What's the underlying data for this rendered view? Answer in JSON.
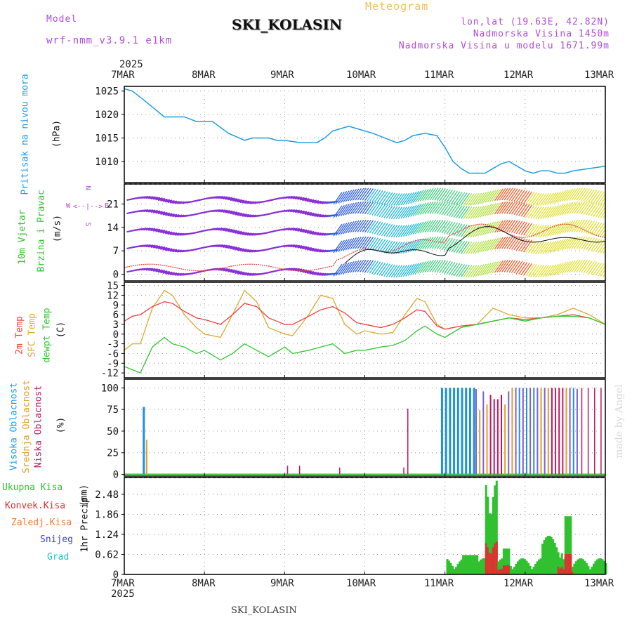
{
  "header": {
    "model_label": "Model",
    "model_name": "wrf-nmm_v3.9.1 e1km",
    "station": "SKI_KOLASIN",
    "product": "Meteogram",
    "coords": "lon,lat (19.63E, 42.82N)",
    "elevation": "Nadmorska Visina 1450m",
    "model_elevation": "Nadmorska Visina u modelu 1671.99m"
  },
  "footer": {
    "station": "SKI_KOLASIN",
    "credit": "made by Angel"
  },
  "x_axis": {
    "year": "2025",
    "ticks": [
      "7MAR",
      "8MAR",
      "9MAR",
      "10MAR",
      "11MAR",
      "12MAR",
      "13MAR"
    ]
  },
  "panels": {
    "pressure": {
      "label": "Pritisak na nivou mora",
      "unit": "(hPa)",
      "yticks": [
        "1025",
        "1020",
        "1015",
        "1010"
      ]
    },
    "wind": {
      "label1": "10m Vjetar",
      "label2": "Brzina i Pravac",
      "unit": "(m/s)",
      "compass_n": "N",
      "compass_s": "S",
      "compass_w": "W",
      "compass_e": "E",
      "yticks": [
        "21",
        "14",
        "7",
        "0"
      ]
    },
    "temp": {
      "label1": "2m Temp",
      "label2": "SFC Temp",
      "label3": "dewpt Temp",
      "unit": "(C)",
      "yticks": [
        "15",
        "12",
        "9",
        "6",
        "3",
        "0",
        "-3",
        "-6",
        "-9",
        "-12"
      ]
    },
    "cloud": {
      "label1": "Visoka Oblacnost",
      "label2": "Srednja Oblacnost",
      "label3": "Niska Oblacnost",
      "unit": "(%)",
      "yticks": [
        "100",
        "75",
        "50",
        "25",
        "0"
      ]
    },
    "precip": {
      "label": "1hr Precip",
      "unit": "(mm)",
      "yticks": [
        "2.48",
        "1.86",
        "1.24",
        "0.62",
        "0"
      ],
      "legend": [
        "Ukupna Kisa",
        "Konvek.Kisa",
        "Zaledj.Kisa",
        "Snijeg",
        "Grad"
      ]
    }
  },
  "colors": {
    "pressure": "#1e9ee0",
    "t2m": "#f04040",
    "sfc": "#e0a830",
    "dew": "#30c830",
    "high": "#1e90e0",
    "mid": "#e0a020",
    "low": "#c01860",
    "total": "#30c030",
    "conv": "#e03030",
    "frz": "#f07830",
    "snow": "#4040e0",
    "hail": "#20c0c0"
  },
  "chart_data": [
    {
      "type": "line",
      "name": "pressure",
      "x": [
        0,
        0.1,
        0.25,
        0.5,
        0.75,
        0.9,
        1.1,
        1.3,
        1.5,
        1.6,
        1.7,
        1.8,
        1.9,
        2.0,
        2.2,
        2.4,
        2.5,
        2.6,
        2.7,
        2.8,
        2.9,
        3.0,
        3.1,
        3.25,
        3.4,
        3.5,
        3.6,
        3.75,
        3.9,
        4.0,
        4.1,
        4.2,
        4.3,
        4.4,
        4.5,
        4.6,
        4.7,
        4.8,
        5.0,
        5.1,
        5.2,
        5.3,
        5.4,
        5.5,
        5.6,
        5.8,
        6.0
      ],
      "y": [
        1025.5,
        1025,
        1023,
        1019.5,
        1019.5,
        1018.5,
        1018.5,
        1016,
        1014.5,
        1015,
        1015,
        1015,
        1014.5,
        1014.5,
        1014,
        1014,
        1015,
        1016.5,
        1017,
        1017.5,
        1017,
        1016.5,
        1016,
        1015,
        1014,
        1014.5,
        1015.5,
        1016,
        1015.5,
        1013,
        1010,
        1008.5,
        1007.5,
        1007.5,
        1007.5,
        1008.5,
        1009.5,
        1010,
        1008,
        1007.5,
        1008,
        1008,
        1007.5,
        1007.5,
        1008,
        1008.5,
        1009
      ]
    },
    {
      "type": "line",
      "name": "temperature",
      "x": [
        0,
        0.1,
        0.2,
        0.35,
        0.5,
        0.6,
        0.75,
        0.9,
        1.0,
        1.2,
        1.35,
        1.5,
        1.65,
        1.8,
        2.0,
        2.1,
        2.3,
        2.45,
        2.6,
        2.75,
        2.9,
        3.0,
        3.2,
        3.35,
        3.5,
        3.65,
        3.75,
        3.9,
        4.0,
        4.2,
        4.4,
        4.6,
        4.8,
        5.0,
        5.2,
        5.4,
        5.6,
        5.8,
        6.0
      ],
      "series": [
        {
          "name": "2m Temp",
          "values": [
            4,
            5.5,
            6,
            8.5,
            10,
            9.5,
            7,
            5,
            4.5,
            3,
            6,
            9.5,
            8.5,
            5,
            3,
            3,
            5.5,
            7.5,
            8.5,
            6.5,
            3.5,
            3,
            2,
            3,
            5,
            7.5,
            7,
            2.5,
            1.5,
            2.5,
            3,
            4,
            5,
            4.5,
            5,
            5.5,
            6,
            5,
            3
          ]
        },
        {
          "name": "SFC Temp",
          "values": [
            -5,
            -3,
            -3,
            8,
            13.5,
            12,
            6,
            2,
            0,
            -1,
            6,
            13.5,
            10,
            2,
            0,
            -0.5,
            6,
            12,
            11,
            3,
            0,
            1,
            0,
            0.5,
            6,
            11,
            10,
            3,
            1.5,
            2.5,
            3,
            8,
            6,
            5,
            5,
            6,
            8,
            6,
            3
          ]
        },
        {
          "name": "dewpt Temp",
          "values": [
            -10,
            -11,
            -12,
            -4,
            -1,
            -3,
            -4,
            -6,
            -5,
            -8,
            -6,
            -3,
            -5,
            -7,
            -4,
            -6,
            -5,
            -4,
            -3,
            -6,
            -5,
            -5,
            -4,
            -3.5,
            -2,
            1,
            2.5,
            0,
            -1,
            2,
            3,
            4,
            5,
            4,
            5,
            5.5,
            5.5,
            5,
            3
          ]
        }
      ],
      "ylim": [
        -13,
        15
      ]
    }
  ]
}
